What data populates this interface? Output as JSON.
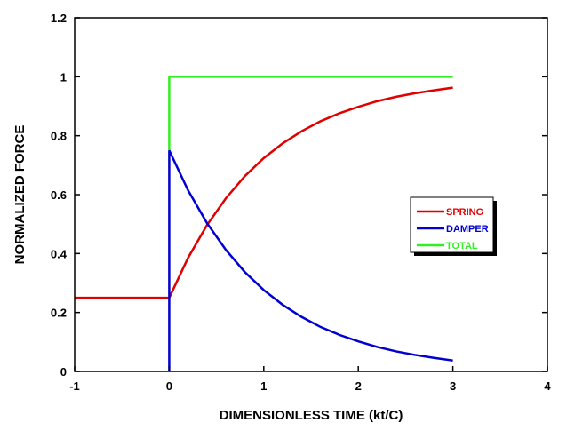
{
  "chart_data": {
    "type": "line",
    "title": "",
    "xlabel": "DIMENSIONLESS TIME (kt/C)",
    "ylabel": "NORMALIZED FORCE",
    "xlim": [
      -1,
      4
    ],
    "ylim": [
      0,
      1.2
    ],
    "xticks": [
      -1,
      0,
      1,
      2,
      3,
      4
    ],
    "yticks": [
      0,
      0.2,
      0.4,
      0.6,
      0.8,
      1,
      1.2
    ],
    "xtick_labels": [
      "-1",
      "0",
      "1",
      "2",
      "3",
      "4"
    ],
    "ytick_labels": [
      "0",
      "0.2",
      "0.4",
      "0.6",
      "0.8",
      "1",
      "1.2"
    ],
    "grid": false,
    "legend_placement": "center-right",
    "series": [
      {
        "name": "SPRING",
        "color": "#e00000",
        "x": [
          -1,
          0,
          0.2,
          0.4,
          0.6,
          0.8,
          1,
          1.2,
          1.4,
          1.6,
          1.8,
          2,
          2.2,
          2.4,
          2.6,
          2.8,
          3
        ],
        "y": [
          0.25,
          0.25,
          0.386,
          0.497,
          0.588,
          0.663,
          0.724,
          0.774,
          0.815,
          0.849,
          0.876,
          0.898,
          0.917,
          0.932,
          0.944,
          0.954,
          0.963
        ]
      },
      {
        "name": "DAMPER",
        "color": "#0000d0",
        "x": [
          0,
          0,
          0.2,
          0.4,
          0.6,
          0.8,
          1,
          1.2,
          1.4,
          1.6,
          1.8,
          2,
          2.2,
          2.4,
          2.6,
          2.8,
          3
        ],
        "y": [
          0,
          0.75,
          0.614,
          0.503,
          0.412,
          0.337,
          0.276,
          0.226,
          0.185,
          0.151,
          0.124,
          0.102,
          0.083,
          0.068,
          0.056,
          0.046,
          0.037
        ]
      },
      {
        "name": "TOTAL",
        "color": "#33ee22",
        "x": [
          0,
          0,
          3
        ],
        "y": [
          0.75,
          1,
          1
        ]
      }
    ]
  }
}
